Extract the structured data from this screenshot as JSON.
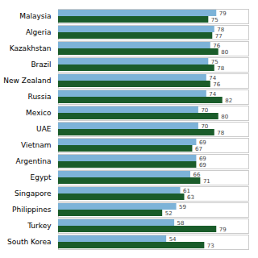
{
  "chart_data": {
    "type": "bar",
    "orientation": "horizontal",
    "categories": [
      "Malaysia",
      "Algeria",
      "Kazakhstan",
      "Brazil",
      "New Zealand",
      "Russia",
      "Mexico",
      "UAE",
      "Vietnam",
      "Argentina",
      "Egypt",
      "Singapore",
      "Philippines",
      "Turkey",
      "South Korea"
    ],
    "series": [
      {
        "color": "#7db3d8",
        "values": [
          79,
          78,
          76,
          75,
          74,
          74,
          70,
          70,
          69,
          69,
          66,
          61,
          59,
          58,
          54
        ]
      },
      {
        "color": "#1a5c2a",
        "values": [
          75,
          77,
          80,
          78,
          76,
          82,
          80,
          78,
          67,
          69,
          71,
          63,
          52,
          79,
          73
        ]
      }
    ],
    "xlim": [
      0,
      95
    ],
    "xticks": [],
    "data_labels": true,
    "tick_labels": "y",
    "grid": false
  }
}
